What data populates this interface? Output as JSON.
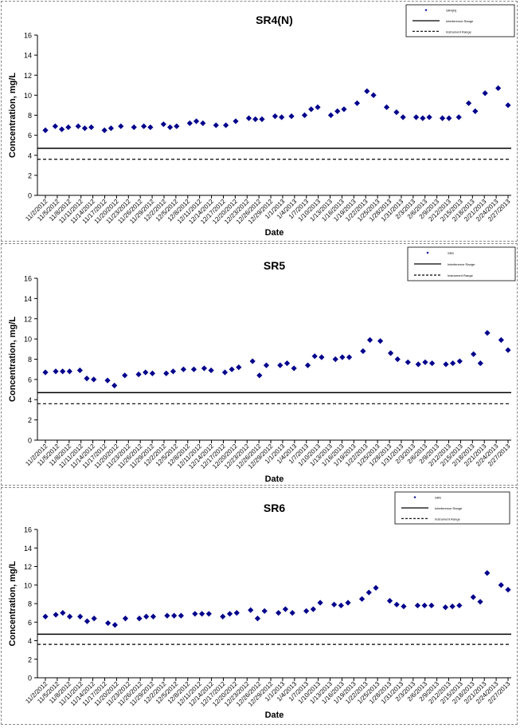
{
  "chart_data": [
    {
      "type": "scatter",
      "title": "SR4(N)",
      "xlabel": "Date",
      "ylabel": "Concentration, mg/L",
      "ylim": [
        0,
        16
      ],
      "yticks": [
        0,
        2,
        4,
        6,
        8,
        10,
        12,
        14,
        16
      ],
      "x_tick_labels": [
        "11/2/2012",
        "11/5/2012",
        "11/8/2012",
        "11/11/2012",
        "11/14/2012",
        "11/17/2012",
        "11/20/2012",
        "11/23/2012",
        "11/26/2012",
        "11/29/2012",
        "12/2/2012",
        "12/5/2012",
        "12/8/2012",
        "12/11/2012",
        "12/14/2012",
        "12/17/2012",
        "12/20/2012",
        "12/23/2012",
        "12/26/2012",
        "12/29/2012",
        "1/1/2013",
        "1/4/2013",
        "1/7/2013",
        "1/10/2013",
        "1/13/2013",
        "1/16/2013",
        "1/19/2013",
        "1/22/2013",
        "1/25/2013",
        "1/28/2013",
        "1/31/2013",
        "2/3/2013",
        "2/6/2013",
        "2/9/2013",
        "2/12/2013",
        "2/15/2013",
        "2/18/2013",
        "2/21/2013",
        "2/24/2013",
        "2/27/2013"
      ],
      "legend": [
        "SR4(N)",
        "Interference Range",
        "Instrument Range"
      ],
      "legend_position": "top-right",
      "series": [
        {
          "name": "SR4(N)",
          "marker": "diamond",
          "color": "#00008B",
          "points": [
            [
              0,
              6.5
            ],
            [
              3,
              6.9
            ],
            [
              5,
              6.6
            ],
            [
              7,
              6.8
            ],
            [
              10,
              6.9
            ],
            [
              12,
              6.7
            ],
            [
              14,
              6.8
            ],
            [
              18,
              6.5
            ],
            [
              20,
              6.7
            ],
            [
              23,
              6.9
            ],
            [
              27,
              6.8
            ],
            [
              30,
              6.9
            ],
            [
              32,
              6.8
            ],
            [
              36,
              7.1
            ],
            [
              38,
              6.8
            ],
            [
              40,
              6.9
            ],
            [
              44,
              7.2
            ],
            [
              46,
              7.4
            ],
            [
              48,
              7.2
            ],
            [
              52,
              7.0
            ],
            [
              55,
              7.0
            ],
            [
              58,
              7.4
            ],
            [
              62,
              7.7
            ],
            [
              64,
              7.6
            ],
            [
              66,
              7.6
            ],
            [
              70,
              7.9
            ],
            [
              72,
              7.8
            ],
            [
              75,
              7.9
            ],
            [
              79,
              8.0
            ],
            [
              81,
              8.6
            ],
            [
              83,
              8.8
            ],
            [
              87,
              8.0
            ],
            [
              89,
              8.4
            ],
            [
              91,
              8.6
            ],
            [
              95,
              9.2
            ],
            [
              98,
              10.4
            ],
            [
              100,
              10.0
            ],
            [
              104,
              8.8
            ],
            [
              107,
              8.3
            ],
            [
              109,
              7.8
            ],
            [
              113,
              7.8
            ],
            [
              115,
              7.7
            ],
            [
              117,
              7.8
            ],
            [
              121,
              7.7
            ],
            [
              123,
              7.7
            ],
            [
              126,
              7.8
            ],
            [
              129,
              9.2
            ],
            [
              131,
              8.4
            ],
            [
              134,
              10.2
            ],
            [
              138,
              10.7
            ],
            [
              141,
              9.0
            ]
          ]
        },
        {
          "name": "Interference Range",
          "style": "solid",
          "value": 4.7
        },
        {
          "name": "Instrument Range",
          "style": "dashed",
          "value": 3.6
        }
      ]
    },
    {
      "type": "scatter",
      "title": "SR5",
      "xlabel": "Date",
      "ylabel": "Concentration, mg/L",
      "ylim": [
        0,
        16
      ],
      "yticks": [
        0,
        2,
        4,
        6,
        8,
        10,
        12,
        14,
        16
      ],
      "x_tick_labels": [
        "11/2/2012",
        "11/5/2012",
        "11/8/2012",
        "11/11/2012",
        "11/14/2012",
        "11/17/2012",
        "11/20/2012",
        "11/23/2012",
        "11/26/2012",
        "11/29/2012",
        "12/2/2012",
        "12/5/2012",
        "12/8/2012",
        "12/11/2012",
        "12/14/2012",
        "12/17/2012",
        "12/20/2012",
        "12/23/2012",
        "12/26/2012",
        "12/29/2012",
        "1/1/2013",
        "1/4/2013",
        "1/7/2013",
        "1/10/2013",
        "1/13/2013",
        "1/16/2013",
        "1/19/2013",
        "1/22/2013",
        "1/25/2013",
        "1/28/2013",
        "1/31/2013",
        "2/3/2013",
        "2/6/2013",
        "2/9/2013",
        "2/12/2013",
        "2/15/2013",
        "2/18/2013",
        "2/21/2013",
        "2/24/2013",
        "2/27/2013"
      ],
      "legend": [
        "SR5",
        "Interference Range",
        "Instrument Range"
      ],
      "legend_position": "top-right",
      "series": [
        {
          "name": "SR5",
          "marker": "diamond",
          "color": "#00008B",
          "points": [
            [
              0,
              6.7
            ],
            [
              3,
              6.8
            ],
            [
              5,
              6.8
            ],
            [
              7,
              6.8
            ],
            [
              10,
              6.9
            ],
            [
              12,
              6.1
            ],
            [
              14,
              6.0
            ],
            [
              18,
              5.9
            ],
            [
              20,
              5.4
            ],
            [
              23,
              6.4
            ],
            [
              27,
              6.5
            ],
            [
              29,
              6.7
            ],
            [
              31,
              6.6
            ],
            [
              35,
              6.6
            ],
            [
              37,
              6.8
            ],
            [
              40,
              7.0
            ],
            [
              43,
              7.0
            ],
            [
              46,
              7.1
            ],
            [
              48,
              6.9
            ],
            [
              52,
              6.7
            ],
            [
              54,
              7.0
            ],
            [
              56,
              7.2
            ],
            [
              60,
              7.8
            ],
            [
              62,
              6.4
            ],
            [
              64,
              7.4
            ],
            [
              68,
              7.4
            ],
            [
              70,
              7.6
            ],
            [
              72,
              7.1
            ],
            [
              76,
              7.4
            ],
            [
              78,
              8.3
            ],
            [
              80,
              8.2
            ],
            [
              84,
              8.0
            ],
            [
              86,
              8.2
            ],
            [
              88,
              8.2
            ],
            [
              92,
              8.8
            ],
            [
              94,
              9.9
            ],
            [
              97,
              9.8
            ],
            [
              100,
              8.6
            ],
            [
              102,
              8.0
            ],
            [
              105,
              7.7
            ],
            [
              108,
              7.5
            ],
            [
              110,
              7.7
            ],
            [
              112,
              7.6
            ],
            [
              116,
              7.5
            ],
            [
              118,
              7.6
            ],
            [
              120,
              7.8
            ],
            [
              124,
              8.5
            ],
            [
              126,
              7.6
            ],
            [
              128,
              10.6
            ],
            [
              132,
              9.9
            ],
            [
              134,
              8.9
            ]
          ]
        },
        {
          "name": "Interference Range",
          "style": "solid",
          "value": 4.7
        },
        {
          "name": "Instrument Range",
          "style": "dashed",
          "value": 3.6
        }
      ]
    },
    {
      "type": "scatter",
      "title": "SR6",
      "xlabel": "Date",
      "ylabel": "Concentration, mg/L",
      "ylim": [
        0,
        16
      ],
      "yticks": [
        0,
        2,
        4,
        6,
        8,
        10,
        12,
        14,
        16
      ],
      "x_tick_labels": [
        "11/2/2012",
        "11/5/2012",
        "11/8/2012",
        "11/11/2012",
        "11/14/2012",
        "11/17/2012",
        "11/20/2012",
        "11/23/2012",
        "11/26/2012",
        "11/29/2012",
        "12/2/2012",
        "12/5/2012",
        "12/8/2012",
        "12/11/2012",
        "12/14/2012",
        "12/17/2012",
        "12/20/2012",
        "12/23/2012",
        "12/26/2012",
        "12/29/2012",
        "1/1/2013",
        "1/4/2013",
        "1/7/2013",
        "1/10/2013",
        "1/13/2013",
        "1/16/2013",
        "1/19/2013",
        "1/22/2013",
        "1/25/2013",
        "1/28/2013",
        "1/31/2013",
        "2/3/2013",
        "2/6/2013",
        "2/9/2013",
        "2/12/2013",
        "2/15/2013",
        "2/18/2013",
        "2/21/2013",
        "2/24/2013",
        "2/27/2013"
      ],
      "legend": [
        "SR6",
        "Interference Range",
        "Instrument Range"
      ],
      "legend_position": "top-right",
      "series": [
        {
          "name": "SR6",
          "marker": "diamond",
          "color": "#00008B",
          "points": [
            [
              0,
              6.6
            ],
            [
              3,
              6.8
            ],
            [
              5,
              7.0
            ],
            [
              7,
              6.6
            ],
            [
              10,
              6.6
            ],
            [
              12,
              6.1
            ],
            [
              14,
              6.4
            ],
            [
              18,
              5.9
            ],
            [
              20,
              5.7
            ],
            [
              23,
              6.4
            ],
            [
              27,
              6.4
            ],
            [
              29,
              6.6
            ],
            [
              31,
              6.6
            ],
            [
              35,
              6.7
            ],
            [
              37,
              6.7
            ],
            [
              39,
              6.7
            ],
            [
              43,
              6.9
            ],
            [
              45,
              6.9
            ],
            [
              47,
              6.9
            ],
            [
              51,
              6.6
            ],
            [
              53,
              6.9
            ],
            [
              55,
              7.0
            ],
            [
              59,
              7.3
            ],
            [
              61,
              6.4
            ],
            [
              63,
              7.2
            ],
            [
              67,
              7.0
            ],
            [
              69,
              7.4
            ],
            [
              71,
              7.0
            ],
            [
              75,
              7.2
            ],
            [
              77,
              7.4
            ],
            [
              79,
              8.1
            ],
            [
              83,
              7.9
            ],
            [
              85,
              7.8
            ],
            [
              87,
              8.1
            ],
            [
              91,
              8.5
            ],
            [
              93,
              9.2
            ],
            [
              95,
              9.7
            ],
            [
              99,
              8.3
            ],
            [
              101,
              7.9
            ],
            [
              103,
              7.7
            ],
            [
              107,
              7.8
            ],
            [
              109,
              7.8
            ],
            [
              111,
              7.8
            ],
            [
              115,
              7.6
            ],
            [
              117,
              7.7
            ],
            [
              119,
              7.8
            ],
            [
              123,
              8.7
            ],
            [
              125,
              8.2
            ],
            [
              127,
              11.3
            ],
            [
              131,
              10.0
            ],
            [
              133,
              9.5
            ]
          ]
        },
        {
          "name": "Interference Range",
          "style": "solid",
          "value": 4.7
        },
        {
          "name": "Instrument Range",
          "style": "dashed",
          "value": 3.6
        }
      ]
    }
  ]
}
